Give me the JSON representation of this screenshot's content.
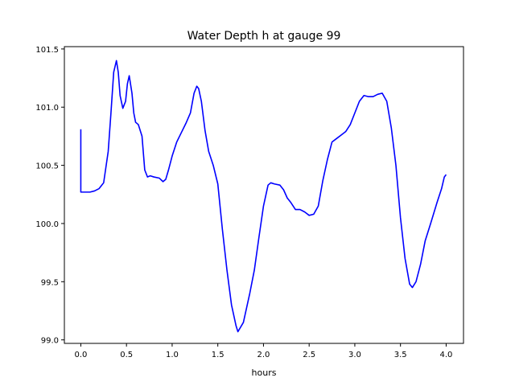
{
  "chart_data": {
    "type": "line",
    "title": "Water Depth h at gauge 99",
    "xlabel": "hours",
    "ylabel": "",
    "xlim": [
      -0.18,
      4.19
    ],
    "ylim": [
      98.97,
      101.52
    ],
    "xticks": [
      0.0,
      0.5,
      1.0,
      1.5,
      2.0,
      2.5,
      3.0,
      3.5,
      4.0
    ],
    "xtick_labels": [
      "0.0",
      "0.5",
      "1.0",
      "1.5",
      "2.0",
      "2.5",
      "3.0",
      "3.5",
      "4.0"
    ],
    "yticks": [
      99.0,
      99.5,
      100.0,
      100.5,
      101.0,
      101.5
    ],
    "ytick_labels": [
      "99.0",
      "99.5",
      "100.0",
      "100.5",
      "101.0",
      "101.5"
    ],
    "grid": false,
    "series": [
      {
        "name": "",
        "color": "#0000ff",
        "x": [
          0.0,
          0.0,
          0.05,
          0.1,
          0.15,
          0.2,
          0.25,
          0.3,
          0.33,
          0.36,
          0.39,
          0.41,
          0.43,
          0.46,
          0.49,
          0.51,
          0.53,
          0.56,
          0.58,
          0.6,
          0.63,
          0.67,
          0.7,
          0.73,
          0.76,
          0.8,
          0.86,
          0.9,
          0.93,
          0.96,
          1.0,
          1.05,
          1.1,
          1.15,
          1.2,
          1.24,
          1.27,
          1.29,
          1.32,
          1.36,
          1.4,
          1.45,
          1.5,
          1.55,
          1.6,
          1.65,
          1.7,
          1.72,
          1.78,
          1.85,
          1.9,
          1.95,
          2.0,
          2.05,
          2.08,
          2.12,
          2.18,
          2.22,
          2.26,
          2.3,
          2.35,
          2.4,
          2.45,
          2.5,
          2.55,
          2.6,
          2.65,
          2.7,
          2.75,
          2.8,
          2.85,
          2.9,
          2.95,
          3.0,
          3.05,
          3.1,
          3.15,
          3.2,
          3.25,
          3.3,
          3.35,
          3.4,
          3.45,
          3.5,
          3.55,
          3.6,
          3.63,
          3.67,
          3.72,
          3.77,
          3.83,
          3.9,
          3.95,
          3.98,
          4.0
        ],
        "y": [
          100.81,
          100.27,
          100.27,
          100.27,
          100.28,
          100.3,
          100.35,
          100.62,
          100.95,
          101.3,
          101.4,
          101.3,
          101.1,
          100.99,
          101.05,
          101.2,
          101.27,
          101.12,
          100.95,
          100.87,
          100.85,
          100.75,
          100.46,
          100.4,
          100.41,
          100.4,
          100.39,
          100.36,
          100.38,
          100.46,
          100.58,
          100.7,
          100.78,
          100.86,
          100.95,
          101.12,
          101.18,
          101.16,
          101.05,
          100.8,
          100.62,
          100.5,
          100.34,
          99.95,
          99.6,
          99.3,
          99.12,
          99.07,
          99.15,
          99.4,
          99.6,
          99.88,
          100.15,
          100.33,
          100.35,
          100.34,
          100.33,
          100.29,
          100.22,
          100.18,
          100.12,
          100.12,
          100.1,
          100.07,
          100.08,
          100.15,
          100.37,
          100.55,
          100.7,
          100.73,
          100.76,
          100.79,
          100.85,
          100.95,
          101.05,
          101.1,
          101.09,
          101.09,
          101.11,
          101.12,
          101.05,
          100.82,
          100.5,
          100.05,
          99.7,
          99.48,
          99.45,
          99.5,
          99.65,
          99.85,
          100.0,
          100.18,
          100.3,
          100.4,
          100.42
        ]
      }
    ]
  }
}
